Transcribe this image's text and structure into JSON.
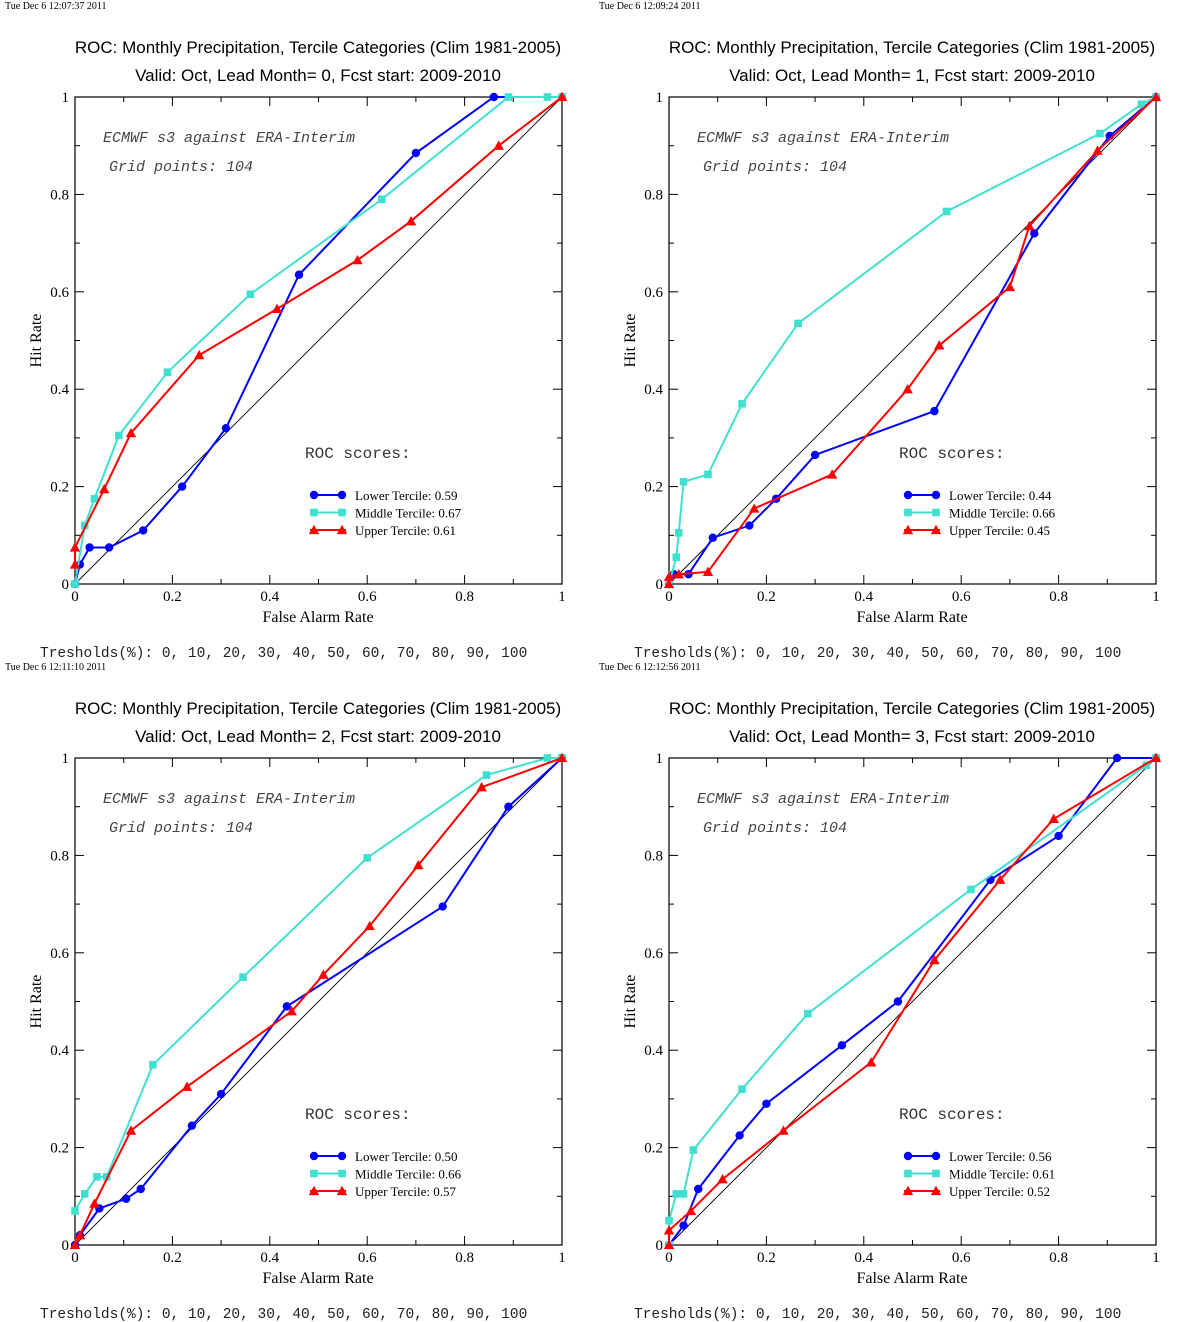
{
  "colors": {
    "lower": "#0000ff",
    "middle": "#40e0d0",
    "upper": "#ff0000",
    "diagonal": "#000000"
  },
  "chart_data": [
    {
      "type": "line",
      "timestamp": "Tue Dec  6 12:07:37 2011",
      "title": "ROC: Monthly Precipitation, Tercile Categories (Clim 1981-2005)",
      "subtitle": "Valid: Oct, Lead Month= 0, Fcst start: 2009-2010",
      "xlabel": "False Alarm Rate",
      "ylabel": "Hit Rate",
      "xlim": [
        0,
        1
      ],
      "ylim": [
        0,
        1
      ],
      "xticks": [
        "0",
        "0.2",
        "0.4",
        "0.6",
        "0.8",
        "1"
      ],
      "yticks": [
        "0",
        "0.2",
        "0.4",
        "0.6",
        "0.8",
        "1"
      ],
      "annotation1": "ECMWF s3 against ERA-Interim",
      "annotation2": "Grid points:  104",
      "roc_heading": "ROC scores:",
      "footer": "Tresholds(%): 0, 10, 20, 30, 40, 50, 60, 70, 80, 90, 100",
      "series": [
        {
          "name": "Lower Tercile: 0.59",
          "marker": "circle",
          "x": [
            0,
            0.01,
            0.03,
            0.07,
            0.14,
            0.22,
            0.31,
            0.46,
            0.7,
            0.86,
            1.0
          ],
          "y": [
            0,
            0.04,
            0.075,
            0.075,
            0.11,
            0.2,
            0.32,
            0.635,
            0.885,
            1.0,
            1.0
          ]
        },
        {
          "name": "Middle Tercile: 0.67",
          "marker": "square",
          "x": [
            0,
            0.02,
            0.04,
            0.09,
            0.19,
            0.36,
            0.63,
            0.89,
            0.97,
            1.0
          ],
          "y": [
            0,
            0.12,
            0.175,
            0.305,
            0.435,
            0.595,
            0.79,
            1.0,
            1.0,
            1.0
          ]
        },
        {
          "name": "Upper Tercile: 0.61",
          "marker": "triangle",
          "x": [
            0,
            0,
            0.06,
            0.115,
            0.255,
            0.415,
            0.58,
            0.69,
            0.87,
            1.0
          ],
          "y": [
            0.04,
            0.075,
            0.195,
            0.31,
            0.47,
            0.565,
            0.665,
            0.745,
            0.9,
            1.0
          ]
        }
      ]
    },
    {
      "type": "line",
      "timestamp": "Tue Dec  6 12:09:24 2011",
      "title": "ROC: Monthly Precipitation, Tercile Categories (Clim 1981-2005)",
      "subtitle": "Valid: Oct, Lead Month= 1, Fcst start: 2009-2010",
      "xlabel": "False Alarm Rate",
      "ylabel": "Hit Rate",
      "xlim": [
        0,
        1
      ],
      "ylim": [
        0,
        1
      ],
      "xticks": [
        "0",
        "0.2",
        "0.4",
        "0.6",
        "0.8",
        "1"
      ],
      "yticks": [
        "0",
        "0.2",
        "0.4",
        "0.6",
        "0.8",
        "1"
      ],
      "annotation1": "ECMWF s3 against ERA-Interim",
      "annotation2": "Grid points:  104",
      "roc_heading": "ROC scores:",
      "footer": "Tresholds(%): 0, 10, 20, 30, 40, 50, 60, 70, 80, 90, 100",
      "series": [
        {
          "name": "Lower Tercile: 0.44",
          "marker": "circle",
          "x": [
            0,
            0.01,
            0.04,
            0.09,
            0.165,
            0.22,
            0.3,
            0.545,
            0.75,
            0.905,
            1.0
          ],
          "y": [
            0,
            0.02,
            0.02,
            0.095,
            0.12,
            0.175,
            0.265,
            0.355,
            0.72,
            0.92,
            1.0
          ]
        },
        {
          "name": "Middle Tercile: 0.66",
          "marker": "square",
          "x": [
            0,
            0.015,
            0.02,
            0.03,
            0.08,
            0.15,
            0.265,
            0.57,
            0.885,
            0.97,
            1.0
          ],
          "y": [
            0,
            0.055,
            0.105,
            0.21,
            0.225,
            0.37,
            0.535,
            0.765,
            0.925,
            0.985,
            1.0
          ]
        },
        {
          "name": "Upper Tercile: 0.45",
          "marker": "triangle",
          "x": [
            0,
            0,
            0.02,
            0.08,
            0.175,
            0.335,
            0.49,
            0.555,
            0.7,
            0.74,
            0.88,
            1.0
          ],
          "y": [
            0,
            0.015,
            0.02,
            0.025,
            0.155,
            0.225,
            0.4,
            0.49,
            0.61,
            0.735,
            0.89,
            1.0
          ]
        }
      ]
    },
    {
      "type": "line",
      "timestamp": "Tue Dec  6 12:11:10 2011",
      "title": "ROC: Monthly Precipitation, Tercile Categories (Clim 1981-2005)",
      "subtitle": "Valid: Oct, Lead Month= 2, Fcst start: 2009-2010",
      "xlabel": "False Alarm Rate",
      "ylabel": "Hit Rate",
      "xlim": [
        0,
        1
      ],
      "ylim": [
        0,
        1
      ],
      "xticks": [
        "0",
        "0.2",
        "0.4",
        "0.6",
        "0.8",
        "1"
      ],
      "yticks": [
        "0",
        "0.2",
        "0.4",
        "0.6",
        "0.8",
        "1"
      ],
      "annotation1": "ECMWF s3 against ERA-Interim",
      "annotation2": "Grid points:  104",
      "roc_heading": "ROC scores:",
      "footer": "Tresholds(%): 0, 10, 20, 30, 40, 50, 60, 70, 80, 90, 100",
      "series": [
        {
          "name": "Lower Tercile: 0.50",
          "marker": "circle",
          "x": [
            0,
            0.01,
            0.05,
            0.105,
            0.135,
            0.24,
            0.3,
            0.435,
            0.755,
            0.89,
            1.0
          ],
          "y": [
            0,
            0.02,
            0.075,
            0.095,
            0.115,
            0.245,
            0.31,
            0.49,
            0.695,
            0.9,
            1.0
          ]
        },
        {
          "name": "Middle Tercile: 0.66",
          "marker": "square",
          "x": [
            0,
            0.02,
            0.045,
            0.065,
            0.16,
            0.345,
            0.6,
            0.845,
            0.97,
            1.0
          ],
          "y": [
            0.07,
            0.105,
            0.14,
            0.14,
            0.37,
            0.55,
            0.795,
            0.965,
            1.0,
            1.0
          ]
        },
        {
          "name": "Upper Tercile: 0.57",
          "marker": "triangle",
          "x": [
            0,
            0.01,
            0.04,
            0.115,
            0.23,
            0.445,
            0.51,
            0.605,
            0.705,
            0.835,
            1.0
          ],
          "y": [
            0,
            0.02,
            0.085,
            0.235,
            0.325,
            0.48,
            0.555,
            0.655,
            0.78,
            0.94,
            1.0
          ]
        }
      ]
    },
    {
      "type": "line",
      "timestamp": "Tue Dec  6 12:12:56 2011",
      "title": "ROC: Monthly Precipitation, Tercile Categories (Clim 1981-2005)",
      "subtitle": "Valid: Oct, Lead Month= 3, Fcst start: 2009-2010",
      "xlabel": "False Alarm Rate",
      "ylabel": "Hit Rate",
      "xlim": [
        0,
        1
      ],
      "ylim": [
        0,
        1
      ],
      "xticks": [
        "0",
        "0.2",
        "0.4",
        "0.6",
        "0.8",
        "1"
      ],
      "yticks": [
        "0",
        "0.2",
        "0.4",
        "0.6",
        "0.8",
        "1"
      ],
      "annotation1": "ECMWF s3 against ERA-Interim",
      "annotation2": "Grid points:  104",
      "roc_heading": "ROC scores:",
      "footer": "Tresholds(%): 0, 10, 20, 30, 40, 50, 60, 70, 80, 90, 100",
      "series": [
        {
          "name": "Lower Tercile: 0.56",
          "marker": "circle",
          "x": [
            0,
            0.03,
            0.06,
            0.145,
            0.2,
            0.355,
            0.47,
            0.66,
            0.8,
            0.92,
            1.0
          ],
          "y": [
            0,
            0.04,
            0.115,
            0.225,
            0.29,
            0.41,
            0.5,
            0.75,
            0.84,
            1.0,
            1.0
          ]
        },
        {
          "name": "Middle Tercile: 0.61",
          "marker": "square",
          "x": [
            0,
            0,
            0.015,
            0.03,
            0.05,
            0.15,
            0.285,
            0.62,
            0.98,
            1.0
          ],
          "y": [
            0,
            0.05,
            0.105,
            0.105,
            0.195,
            0.32,
            0.475,
            0.73,
            0.985,
            1.0
          ]
        },
        {
          "name": "Upper Tercile: 0.52",
          "marker": "triangle",
          "x": [
            0,
            0,
            0.045,
            0.11,
            0.235,
            0.415,
            0.545,
            0.68,
            0.79,
            1.0
          ],
          "y": [
            0,
            0.03,
            0.07,
            0.135,
            0.235,
            0.375,
            0.585,
            0.75,
            0.875,
            1.0
          ]
        }
      ]
    }
  ]
}
